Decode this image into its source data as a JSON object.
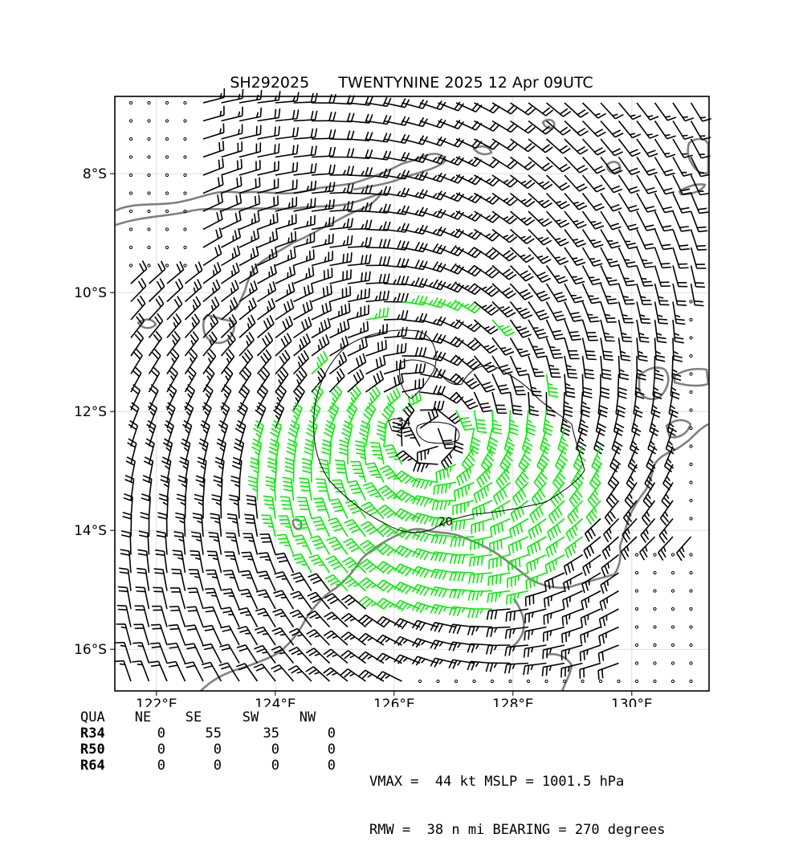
{
  "title": "SH292025      TWENTYNINE 2025 12 Apr 09UTC",
  "map": {
    "lon_range": [
      121.3,
      131.3
    ],
    "lat_range": [
      -16.7,
      -6.7
    ],
    "lon_ticks": [
      {
        "value": 122,
        "label": "122°E"
      },
      {
        "value": 124,
        "label": "124°E"
      },
      {
        "value": 126,
        "label": "126°E"
      },
      {
        "value": 128,
        "label": "128°E"
      },
      {
        "value": 130,
        "label": "130°E"
      }
    ],
    "lat_ticks": [
      {
        "value": -8,
        "label": "8°S"
      },
      {
        "value": -10,
        "label": "10°S"
      },
      {
        "value": -12,
        "label": "12°S"
      },
      {
        "value": -14,
        "label": "14°S"
      },
      {
        "value": -16,
        "label": "16°S"
      }
    ],
    "storm_center": {
      "lon": 126.6,
      "lat": -12.4
    },
    "contour_labels": {
      "c34": "34",
      "c20": "20"
    },
    "colors": {
      "barb_weak": "#000000",
      "barb_34kt": "#00ee00",
      "barb_50kt": "#ffa500",
      "coast": "#808080",
      "grid": "#dddddd",
      "contour": "#000000"
    }
  },
  "radii_table": {
    "headers": [
      "QUA",
      "NE",
      "SE",
      "SW",
      "NW"
    ],
    "rows": [
      {
        "label": "R34",
        "values": [
          "0",
          "55",
          "35",
          "0"
        ]
      },
      {
        "label": "R50",
        "values": [
          "0",
          "0",
          "0",
          "0"
        ]
      },
      {
        "label": "R64",
        "values": [
          "0",
          "0",
          "0",
          "0"
        ]
      }
    ]
  },
  "summary": {
    "line1": "VMAX =  44 kt MSLP = 1001.5 hPa",
    "line2": "RMW =  38 n mi BEARING = 270 degrees"
  }
}
